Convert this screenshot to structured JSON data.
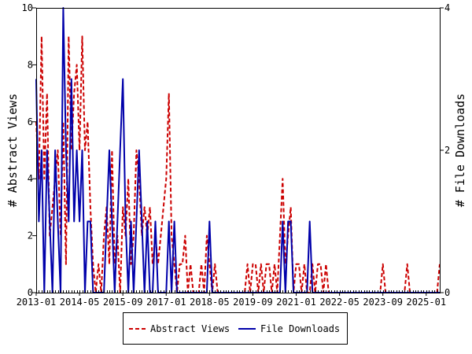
{
  "chart_data": {
    "type": "line",
    "x_axis": {
      "ticks": [
        "2013-01",
        "2014-05",
        "2015-09",
        "2017-01",
        "2018-05",
        "2019-09",
        "2021-01",
        "2022-05",
        "2023-09",
        "2025-01"
      ],
      "range": [
        "2013-01",
        "2025-06"
      ]
    },
    "y_left": {
      "label": "# Abstract Views",
      "range": [
        0,
        10
      ],
      "ticks": [
        "0",
        "2",
        "4",
        "6",
        "8",
        "10"
      ]
    },
    "y_right": {
      "label": "# File Downloads",
      "range": [
        0,
        4
      ],
      "ticks": [
        "0",
        "2",
        "4"
      ]
    },
    "legend": {
      "position": "bottom-center"
    },
    "series": [
      {
        "name": "Abstract Views",
        "axis": "left",
        "color": "#cc0000",
        "style": "dashed",
        "points": [
          [
            "2013-01",
            6
          ],
          [
            "2013-02",
            4
          ],
          [
            "2013-03",
            9
          ],
          [
            "2013-04",
            4
          ],
          [
            "2013-05",
            7
          ],
          [
            "2013-06",
            2
          ],
          [
            "2013-07",
            3
          ],
          [
            "2013-08",
            4
          ],
          [
            "2013-09",
            5
          ],
          [
            "2013-10",
            2
          ],
          [
            "2013-11",
            6
          ],
          [
            "2013-12",
            1
          ],
          [
            "2014-01",
            9
          ],
          [
            "2014-02",
            5
          ],
          [
            "2014-03",
            7
          ],
          [
            "2014-04",
            8
          ],
          [
            "2014-05",
            5
          ],
          [
            "2014-06",
            9
          ],
          [
            "2014-07",
            5
          ],
          [
            "2014-08",
            6
          ],
          [
            "2014-09",
            3
          ],
          [
            "2014-10",
            1
          ],
          [
            "2014-11",
            0
          ],
          [
            "2014-12",
            1
          ],
          [
            "2015-01",
            0
          ],
          [
            "2015-02",
            2
          ],
          [
            "2015-03",
            3
          ],
          [
            "2015-04",
            1
          ],
          [
            "2015-05",
            5
          ],
          [
            "2015-06",
            1
          ],
          [
            "2015-07",
            2
          ],
          [
            "2015-08",
            0
          ],
          [
            "2015-09",
            3
          ],
          [
            "2015-10",
            2
          ],
          [
            "2015-11",
            4
          ],
          [
            "2015-12",
            1
          ],
          [
            "2016-01",
            2
          ],
          [
            "2016-02",
            5
          ],
          [
            "2016-03",
            4
          ],
          [
            "2016-04",
            2
          ],
          [
            "2016-05",
            3
          ],
          [
            "2016-06",
            2
          ],
          [
            "2016-07",
            3
          ],
          [
            "2016-08",
            1
          ],
          [
            "2016-09",
            2
          ],
          [
            "2016-10",
            1
          ],
          [
            "2016-11",
            2
          ],
          [
            "2016-12",
            3
          ],
          [
            "2017-01",
            4
          ],
          [
            "2017-02",
            7
          ],
          [
            "2017-03",
            2
          ],
          [
            "2017-04",
            1
          ],
          [
            "2017-05",
            0
          ],
          [
            "2017-06",
            1
          ],
          [
            "2017-07",
            1
          ],
          [
            "2017-08",
            2
          ],
          [
            "2017-09",
            0
          ],
          [
            "2017-10",
            1
          ],
          [
            "2017-11",
            0
          ],
          [
            "2017-12",
            0
          ],
          [
            "2018-01",
            0
          ],
          [
            "2018-02",
            1
          ],
          [
            "2018-03",
            0
          ],
          [
            "2018-04",
            2
          ],
          [
            "2018-05",
            1
          ],
          [
            "2018-06",
            0
          ],
          [
            "2018-07",
            1
          ],
          [
            "2018-08",
            0
          ],
          [
            "2018-09",
            0
          ],
          [
            "2018-10",
            0
          ],
          [
            "2018-11",
            0
          ],
          [
            "2018-12",
            0
          ],
          [
            "2019-01",
            0
          ],
          [
            "2019-02",
            0
          ],
          [
            "2019-03",
            0
          ],
          [
            "2019-04",
            0
          ],
          [
            "2019-05",
            0
          ],
          [
            "2019-06",
            0
          ],
          [
            "2019-07",
            1
          ],
          [
            "2019-08",
            0
          ],
          [
            "2019-09",
            1
          ],
          [
            "2019-10",
            1
          ],
          [
            "2019-11",
            0
          ],
          [
            "2019-12",
            1
          ],
          [
            "2020-01",
            0
          ],
          [
            "2020-02",
            1
          ],
          [
            "2020-03",
            1
          ],
          [
            "2020-04",
            0
          ],
          [
            "2020-05",
            1
          ],
          [
            "2020-06",
            0
          ],
          [
            "2020-07",
            2
          ],
          [
            "2020-08",
            4
          ],
          [
            "2020-09",
            1
          ],
          [
            "2020-10",
            2
          ],
          [
            "2020-11",
            3
          ],
          [
            "2020-12",
            0
          ],
          [
            "2021-01",
            1
          ],
          [
            "2021-02",
            1
          ],
          [
            "2021-03",
            0
          ],
          [
            "2021-04",
            1
          ],
          [
            "2021-05",
            0
          ],
          [
            "2021-06",
            0
          ],
          [
            "2021-07",
            1
          ],
          [
            "2021-08",
            0
          ],
          [
            "2021-09",
            1
          ],
          [
            "2021-10",
            1
          ],
          [
            "2021-11",
            0
          ],
          [
            "2021-12",
            1
          ],
          [
            "2022-01",
            0
          ],
          [
            "2022-02",
            0
          ],
          [
            "2022-03",
            0
          ],
          [
            "2022-04",
            0
          ],
          [
            "2022-05",
            0
          ],
          [
            "2022-06",
            0
          ],
          [
            "2022-07",
            0
          ],
          [
            "2022-08",
            0
          ],
          [
            "2022-09",
            0
          ],
          [
            "2022-10",
            0
          ],
          [
            "2022-11",
            0
          ],
          [
            "2022-12",
            0
          ],
          [
            "2023-01",
            0
          ],
          [
            "2023-02",
            0
          ],
          [
            "2023-03",
            0
          ],
          [
            "2023-04",
            0
          ],
          [
            "2023-05",
            0
          ],
          [
            "2023-06",
            0
          ],
          [
            "2023-07",
            0
          ],
          [
            "2023-08",
            0
          ],
          [
            "2023-09",
            1
          ],
          [
            "2023-10",
            0
          ],
          [
            "2023-11",
            0
          ],
          [
            "2023-12",
            0
          ],
          [
            "2024-01",
            0
          ],
          [
            "2024-02",
            0
          ],
          [
            "2024-03",
            0
          ],
          [
            "2024-04",
            0
          ],
          [
            "2024-05",
            0
          ],
          [
            "2024-06",
            1
          ],
          [
            "2024-07",
            0
          ],
          [
            "2024-08",
            0
          ],
          [
            "2024-09",
            0
          ],
          [
            "2024-10",
            0
          ],
          [
            "2024-11",
            0
          ],
          [
            "2024-12",
            0
          ],
          [
            "2025-01",
            0
          ],
          [
            "2025-02",
            0
          ],
          [
            "2025-03",
            0
          ],
          [
            "2025-04",
            0
          ],
          [
            "2025-05",
            0
          ],
          [
            "2025-06",
            1
          ]
        ]
      },
      {
        "name": "File Downloads",
        "axis": "right",
        "color": "#0000aa",
        "style": "solid",
        "points": [
          [
            "2013-01",
            3
          ],
          [
            "2013-02",
            1
          ],
          [
            "2013-03",
            2
          ],
          [
            "2013-04",
            0
          ],
          [
            "2013-05",
            2
          ],
          [
            "2013-06",
            1
          ],
          [
            "2013-07",
            0
          ],
          [
            "2013-08",
            2
          ],
          [
            "2013-09",
            1
          ],
          [
            "2013-10",
            0
          ],
          [
            "2013-11",
            4
          ],
          [
            "2013-12",
            2
          ],
          [
            "2014-01",
            1
          ],
          [
            "2014-02",
            3
          ],
          [
            "2014-03",
            1
          ],
          [
            "2014-04",
            2
          ],
          [
            "2014-05",
            1
          ],
          [
            "2014-06",
            2
          ],
          [
            "2014-07",
            0
          ],
          [
            "2014-08",
            1
          ],
          [
            "2014-09",
            1
          ],
          [
            "2014-10",
            0
          ],
          [
            "2014-11",
            0
          ],
          [
            "2014-12",
            0
          ],
          [
            "2015-01",
            0
          ],
          [
            "2015-02",
            0
          ],
          [
            "2015-03",
            1
          ],
          [
            "2015-04",
            2
          ],
          [
            "2015-05",
            1
          ],
          [
            "2015-06",
            0
          ],
          [
            "2015-07",
            1
          ],
          [
            "2015-08",
            2
          ],
          [
            "2015-09",
            3
          ],
          [
            "2015-10",
            1
          ],
          [
            "2015-11",
            0
          ],
          [
            "2015-12",
            1
          ],
          [
            "2016-01",
            0
          ],
          [
            "2016-02",
            1
          ],
          [
            "2016-03",
            2
          ],
          [
            "2016-04",
            1
          ],
          [
            "2016-05",
            0
          ],
          [
            "2016-06",
            1
          ],
          [
            "2016-07",
            0
          ],
          [
            "2016-08",
            0
          ],
          [
            "2016-09",
            1
          ],
          [
            "2016-10",
            0
          ],
          [
            "2016-11",
            0
          ],
          [
            "2016-12",
            0
          ],
          [
            "2017-01",
            0
          ],
          [
            "2017-02",
            1
          ],
          [
            "2017-03",
            0
          ],
          [
            "2017-04",
            1
          ],
          [
            "2017-05",
            0
          ],
          [
            "2017-06",
            0
          ],
          [
            "2017-07",
            0
          ],
          [
            "2017-08",
            0
          ],
          [
            "2017-09",
            0
          ],
          [
            "2017-10",
            0
          ],
          [
            "2017-11",
            0
          ],
          [
            "2017-12",
            0
          ],
          [
            "2018-01",
            0
          ],
          [
            "2018-02",
            0
          ],
          [
            "2018-03",
            0
          ],
          [
            "2018-04",
            0
          ],
          [
            "2018-05",
            1
          ],
          [
            "2018-06",
            0
          ],
          [
            "2018-07",
            0
          ],
          [
            "2018-08",
            0
          ],
          [
            "2018-09",
            0
          ],
          [
            "2018-10",
            0
          ],
          [
            "2018-11",
            0
          ],
          [
            "2018-12",
            0
          ],
          [
            "2019-01",
            0
          ],
          [
            "2019-02",
            0
          ],
          [
            "2019-03",
            0
          ],
          [
            "2019-04",
            0
          ],
          [
            "2019-05",
            0
          ],
          [
            "2019-06",
            0
          ],
          [
            "2019-07",
            0
          ],
          [
            "2019-08",
            0
          ],
          [
            "2019-09",
            0
          ],
          [
            "2019-10",
            0
          ],
          [
            "2019-11",
            0
          ],
          [
            "2019-12",
            0
          ],
          [
            "2020-01",
            0
          ],
          [
            "2020-02",
            0
          ],
          [
            "2020-03",
            0
          ],
          [
            "2020-04",
            0
          ],
          [
            "2020-05",
            0
          ],
          [
            "2020-06",
            0
          ],
          [
            "2020-07",
            0
          ],
          [
            "2020-08",
            1
          ],
          [
            "2020-09",
            0
          ],
          [
            "2020-10",
            1
          ],
          [
            "2020-11",
            1
          ],
          [
            "2020-12",
            0
          ],
          [
            "2021-01",
            0
          ],
          [
            "2021-02",
            0
          ],
          [
            "2021-03",
            0
          ],
          [
            "2021-04",
            0
          ],
          [
            "2021-05",
            0
          ],
          [
            "2021-06",
            1
          ],
          [
            "2021-07",
            0
          ],
          [
            "2021-08",
            0
          ],
          [
            "2021-09",
            0
          ],
          [
            "2021-10",
            0
          ],
          [
            "2021-11",
            0
          ],
          [
            "2021-12",
            0
          ],
          [
            "2022-01",
            0
          ],
          [
            "2022-02",
            0
          ],
          [
            "2022-03",
            0
          ],
          [
            "2022-04",
            0
          ],
          [
            "2022-05",
            0
          ],
          [
            "2022-06",
            0
          ],
          [
            "2022-07",
            0
          ],
          [
            "2022-08",
            0
          ],
          [
            "2022-09",
            0
          ],
          [
            "2022-10",
            0
          ],
          [
            "2022-11",
            0
          ],
          [
            "2022-12",
            0
          ],
          [
            "2023-01",
            0
          ],
          [
            "2023-02",
            0
          ],
          [
            "2023-03",
            0
          ],
          [
            "2023-04",
            0
          ],
          [
            "2023-05",
            0
          ],
          [
            "2023-06",
            0
          ],
          [
            "2023-07",
            0
          ],
          [
            "2023-08",
            0
          ],
          [
            "2023-09",
            0
          ],
          [
            "2023-10",
            0
          ],
          [
            "2023-11",
            0
          ],
          [
            "2023-12",
            0
          ],
          [
            "2024-01",
            0
          ],
          [
            "2024-02",
            0
          ],
          [
            "2024-03",
            0
          ],
          [
            "2024-04",
            0
          ],
          [
            "2024-05",
            0
          ],
          [
            "2024-06",
            0
          ],
          [
            "2024-07",
            0
          ],
          [
            "2024-08",
            0
          ],
          [
            "2024-09",
            0
          ],
          [
            "2024-10",
            0
          ],
          [
            "2024-11",
            0
          ],
          [
            "2024-12",
            0
          ],
          [
            "2025-01",
            0
          ],
          [
            "2025-02",
            0
          ],
          [
            "2025-03",
            0
          ],
          [
            "2025-04",
            0
          ],
          [
            "2025-05",
            0
          ],
          [
            "2025-06",
            0
          ]
        ]
      }
    ]
  }
}
